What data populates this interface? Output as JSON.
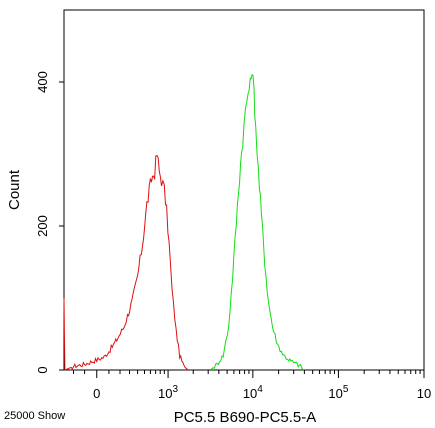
{
  "chart_data": {
    "type": "line",
    "title": "",
    "xlabel": "PC5.5 B690-PC5.5-A",
    "ylabel": "Count",
    "x_scale": "biexponential",
    "xlim": [
      -300,
      1000000
    ],
    "ylim": [
      0,
      500
    ],
    "x_ticks": [
      {
        "value": 0,
        "label": "0"
      },
      {
        "value": 1000,
        "label": "10",
        "sup": "3"
      },
      {
        "value": 10000,
        "label": "10",
        "sup": "4"
      },
      {
        "value": 100000,
        "label": "10",
        "sup": "5"
      },
      {
        "value": 1000000,
        "label": "10",
        "sup": ""
      }
    ],
    "y_ticks": [
      {
        "value": 0,
        "label": "0"
      },
      {
        "value": 200,
        "label": "200"
      },
      {
        "value": 400,
        "label": "400"
      }
    ],
    "grid": false,
    "legend": "none",
    "footnote": "25000 Show",
    "series": [
      {
        "color": "#dd1111",
        "points": [
          [
            -300,
            95
          ],
          [
            -290,
            0
          ],
          [
            -200,
            5
          ],
          [
            -100,
            8
          ],
          [
            0,
            14
          ],
          [
            60,
            18
          ],
          [
            110,
            28
          ],
          [
            170,
            42
          ],
          [
            240,
            60
          ],
          [
            330,
            95
          ],
          [
            400,
            130
          ],
          [
            470,
            175
          ],
          [
            540,
            230
          ],
          [
            620,
            265
          ],
          [
            680,
            275
          ],
          [
            730,
            300
          ],
          [
            780,
            275
          ],
          [
            830,
            265
          ],
          [
            900,
            250
          ],
          [
            960,
            220
          ],
          [
            1030,
            175
          ],
          [
            1120,
            110
          ],
          [
            1250,
            55
          ],
          [
            1380,
            20
          ],
          [
            1550,
            5
          ],
          [
            1750,
            0
          ]
        ]
      },
      {
        "color": "#11dd11",
        "points": [
          [
            3200,
            0
          ],
          [
            3800,
            8
          ],
          [
            4500,
            20
          ],
          [
            5200,
            60
          ],
          [
            5800,
            130
          ],
          [
            6400,
            205
          ],
          [
            7000,
            270
          ],
          [
            7600,
            320
          ],
          [
            8200,
            360
          ],
          [
            8800,
            385
          ],
          [
            9300,
            395
          ],
          [
            9800,
            420
          ],
          [
            10300,
            385
          ],
          [
            10800,
            340
          ],
          [
            11600,
            275
          ],
          [
            12600,
            215
          ],
          [
            13800,
            150
          ],
          [
            15200,
            95
          ],
          [
            17000,
            60
          ],
          [
            19500,
            35
          ],
          [
            23000,
            20
          ],
          [
            28000,
            12
          ],
          [
            33000,
            8
          ],
          [
            36000,
            5
          ],
          [
            39000,
            0
          ]
        ]
      }
    ]
  }
}
